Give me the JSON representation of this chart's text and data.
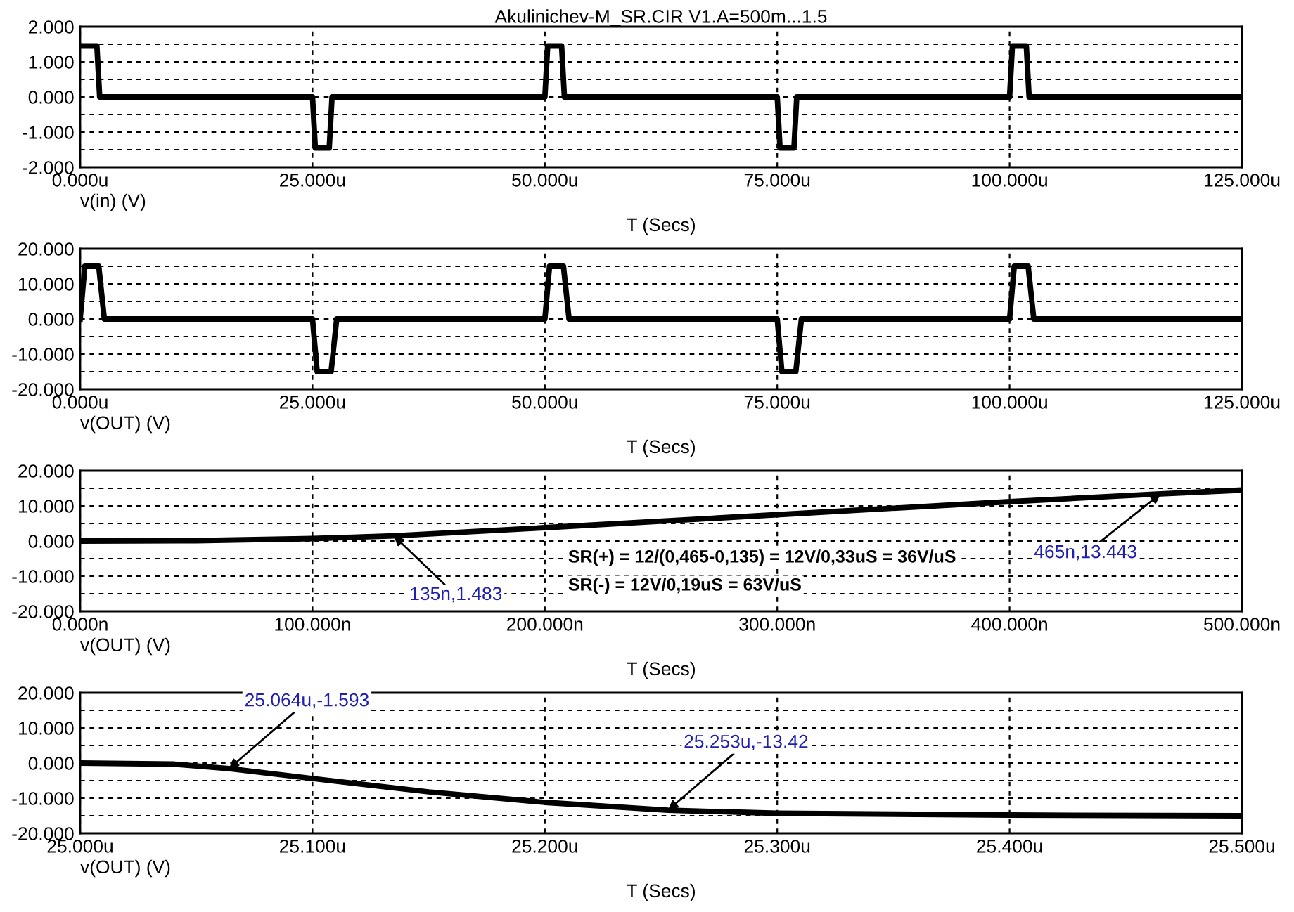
{
  "chart_data": [
    {
      "type": "line",
      "title": "Akulinichev-M_SR.CIR V1.A=500m...1.5",
      "xlabel": "T (Secs)",
      "legend": "bottom left",
      "xlim": [
        0,
        125
      ],
      "xticks": [
        {
          "value": 0,
          "label": "0.000u"
        },
        {
          "value": 25,
          "label": "25.000u"
        },
        {
          "value": 50,
          "label": "50.000u"
        },
        {
          "value": 75,
          "label": "75.000u"
        },
        {
          "value": 100,
          "label": "100.000u"
        },
        {
          "value": 125,
          "label": "125.000u"
        }
      ],
      "ylim": [
        -2,
        2
      ],
      "yticks": [
        {
          "value": -2,
          "label": "-2.000"
        },
        {
          "value": -1.5,
          "label": null
        },
        {
          "value": -1,
          "label": "-1.000"
        },
        {
          "value": -0.5,
          "label": null
        },
        {
          "value": 0,
          "label": "0.000"
        },
        {
          "value": 0.5,
          "label": null
        },
        {
          "value": 1,
          "label": "1.000"
        },
        {
          "value": 1.5,
          "label": null
        },
        {
          "value": 2,
          "label": "2.000"
        }
      ],
      "grid": true,
      "marker": "none",
      "line_style": "solid",
      "series": [
        {
          "name": "v(in) (V)",
          "color": "#000000",
          "x": [
            0,
            1.8,
            2.1,
            25,
            25.3,
            26.8,
            27.1,
            50,
            50.3,
            51.8,
            52.1,
            75,
            75.3,
            76.8,
            77.1,
            100,
            100.3,
            101.8,
            102.1,
            125
          ],
          "values": [
            1.45,
            1.45,
            0,
            0,
            -1.45,
            -1.45,
            0,
            0,
            1.45,
            1.45,
            0,
            0,
            -1.45,
            -1.45,
            0,
            0,
            1.45,
            1.45,
            0,
            0
          ]
        }
      ]
    },
    {
      "type": "line",
      "xlabel": "T (Secs)",
      "legend": "bottom left",
      "xlim": [
        0,
        125
      ],
      "xticks": [
        {
          "value": 0,
          "label": "0.000u"
        },
        {
          "value": 25,
          "label": "25.000u"
        },
        {
          "value": 50,
          "label": "50.000u"
        },
        {
          "value": 75,
          "label": "75.000u"
        },
        {
          "value": 100,
          "label": "100.000u"
        },
        {
          "value": 125,
          "label": "125.000u"
        }
      ],
      "ylim": [
        -20,
        20
      ],
      "yticks": [
        {
          "value": -20,
          "label": "-20.000"
        },
        {
          "value": -15,
          "label": null
        },
        {
          "value": -10,
          "label": "-10.000"
        },
        {
          "value": -5,
          "label": null
        },
        {
          "value": 0,
          "label": "0.000"
        },
        {
          "value": 5,
          "label": null
        },
        {
          "value": 10,
          "label": "10.000"
        },
        {
          "value": 15,
          "label": null
        },
        {
          "value": 20,
          "label": "20.000"
        }
      ],
      "grid": true,
      "marker": "none",
      "line_style": "solid",
      "series": [
        {
          "name": "v(OUT) (V)",
          "color": "#000000",
          "x": [
            0,
            0.5,
            2.0,
            2.6,
            25,
            25.5,
            27.0,
            27.6,
            50,
            50.5,
            52,
            52.6,
            75,
            75.5,
            77,
            77.6,
            100,
            100.5,
            102,
            102.6,
            125
          ],
          "values": [
            0,
            15,
            15,
            0,
            0,
            -15,
            -15,
            0,
            0,
            15,
            15,
            0,
            0,
            -15,
            -15,
            0,
            0,
            15,
            15,
            0,
            0
          ]
        }
      ]
    },
    {
      "type": "line",
      "xlabel": "T (Secs)",
      "legend": "bottom left",
      "xlim": [
        0,
        500
      ],
      "xticks": [
        {
          "value": 0,
          "label": "0.000n"
        },
        {
          "value": 100,
          "label": "100.000n"
        },
        {
          "value": 200,
          "label": "200.000n"
        },
        {
          "value": 300,
          "label": "300.000n"
        },
        {
          "value": 400,
          "label": "400.000n"
        },
        {
          "value": 500,
          "label": "500.000n"
        }
      ],
      "ylim": [
        -20,
        20
      ],
      "yticks": [
        {
          "value": -20,
          "label": "-20.000"
        },
        {
          "value": -15,
          "label": null
        },
        {
          "value": -10,
          "label": "-10.000"
        },
        {
          "value": -5,
          "label": null
        },
        {
          "value": 0,
          "label": "0.000"
        },
        {
          "value": 5,
          "label": null
        },
        {
          "value": 10,
          "label": "10.000"
        },
        {
          "value": 15,
          "label": null
        },
        {
          "value": 20,
          "label": "20.000"
        }
      ],
      "grid": true,
      "marker": "none",
      "line_style": "solid",
      "series": [
        {
          "name": "v(OUT) (V)",
          "color": "#000000",
          "x": [
            0,
            50,
            100,
            135,
            200,
            300,
            400,
            465,
            500
          ],
          "values": [
            0,
            0.1,
            0.7,
            1.483,
            3.8,
            7.5,
            11.2,
            13.443,
            14.5
          ]
        }
      ],
      "annotations": [
        {
          "text": "135n,1.483",
          "x": 135,
          "y": 1.483
        },
        {
          "text": "465n,13.443",
          "x": 465,
          "y": 13.443
        },
        "SR(+) = 12/(0,465-0,135) = 12V/0,33uS = 36V/uS",
        "SR(-) = 12V/0,19uS = 63V/uS"
      ]
    },
    {
      "type": "line",
      "xlabel": "T (Secs)",
      "legend": "bottom left",
      "xlim": [
        25.0,
        25.5
      ],
      "xticks": [
        {
          "value": 25.0,
          "label": "25.000u"
        },
        {
          "value": 25.1,
          "label": "25.100u"
        },
        {
          "value": 25.2,
          "label": "25.200u"
        },
        {
          "value": 25.3,
          "label": "25.300u"
        },
        {
          "value": 25.4,
          "label": "25.400u"
        },
        {
          "value": 25.5,
          "label": "25.500u"
        }
      ],
      "ylim": [
        -20,
        20
      ],
      "yticks": [
        {
          "value": -20,
          "label": "-20.000"
        },
        {
          "value": -15,
          "label": null
        },
        {
          "value": -10,
          "label": "-10.000"
        },
        {
          "value": -5,
          "label": null
        },
        {
          "value": 0,
          "label": "0.000"
        },
        {
          "value": 5,
          "label": null
        },
        {
          "value": 10,
          "label": "10.000"
        },
        {
          "value": 15,
          "label": null
        },
        {
          "value": 20,
          "label": "20.000"
        }
      ],
      "grid": true,
      "marker": "none",
      "line_style": "solid",
      "series": [
        {
          "name": "v(OUT) (V)",
          "color": "#000000",
          "x": [
            25.0,
            25.04,
            25.064,
            25.1,
            25.15,
            25.2,
            25.253,
            25.3,
            25.4,
            25.5
          ],
          "values": [
            0,
            -0.3,
            -1.593,
            -4.4,
            -8.2,
            -11.2,
            -13.42,
            -14.3,
            -14.8,
            -15
          ]
        }
      ],
      "annotations": [
        {
          "text": "25.064u,-1.593",
          "x": 25.064,
          "y": -1.593
        },
        {
          "text": "25.253u,-13.42",
          "x": 25.253,
          "y": -13.42
        }
      ]
    }
  ]
}
